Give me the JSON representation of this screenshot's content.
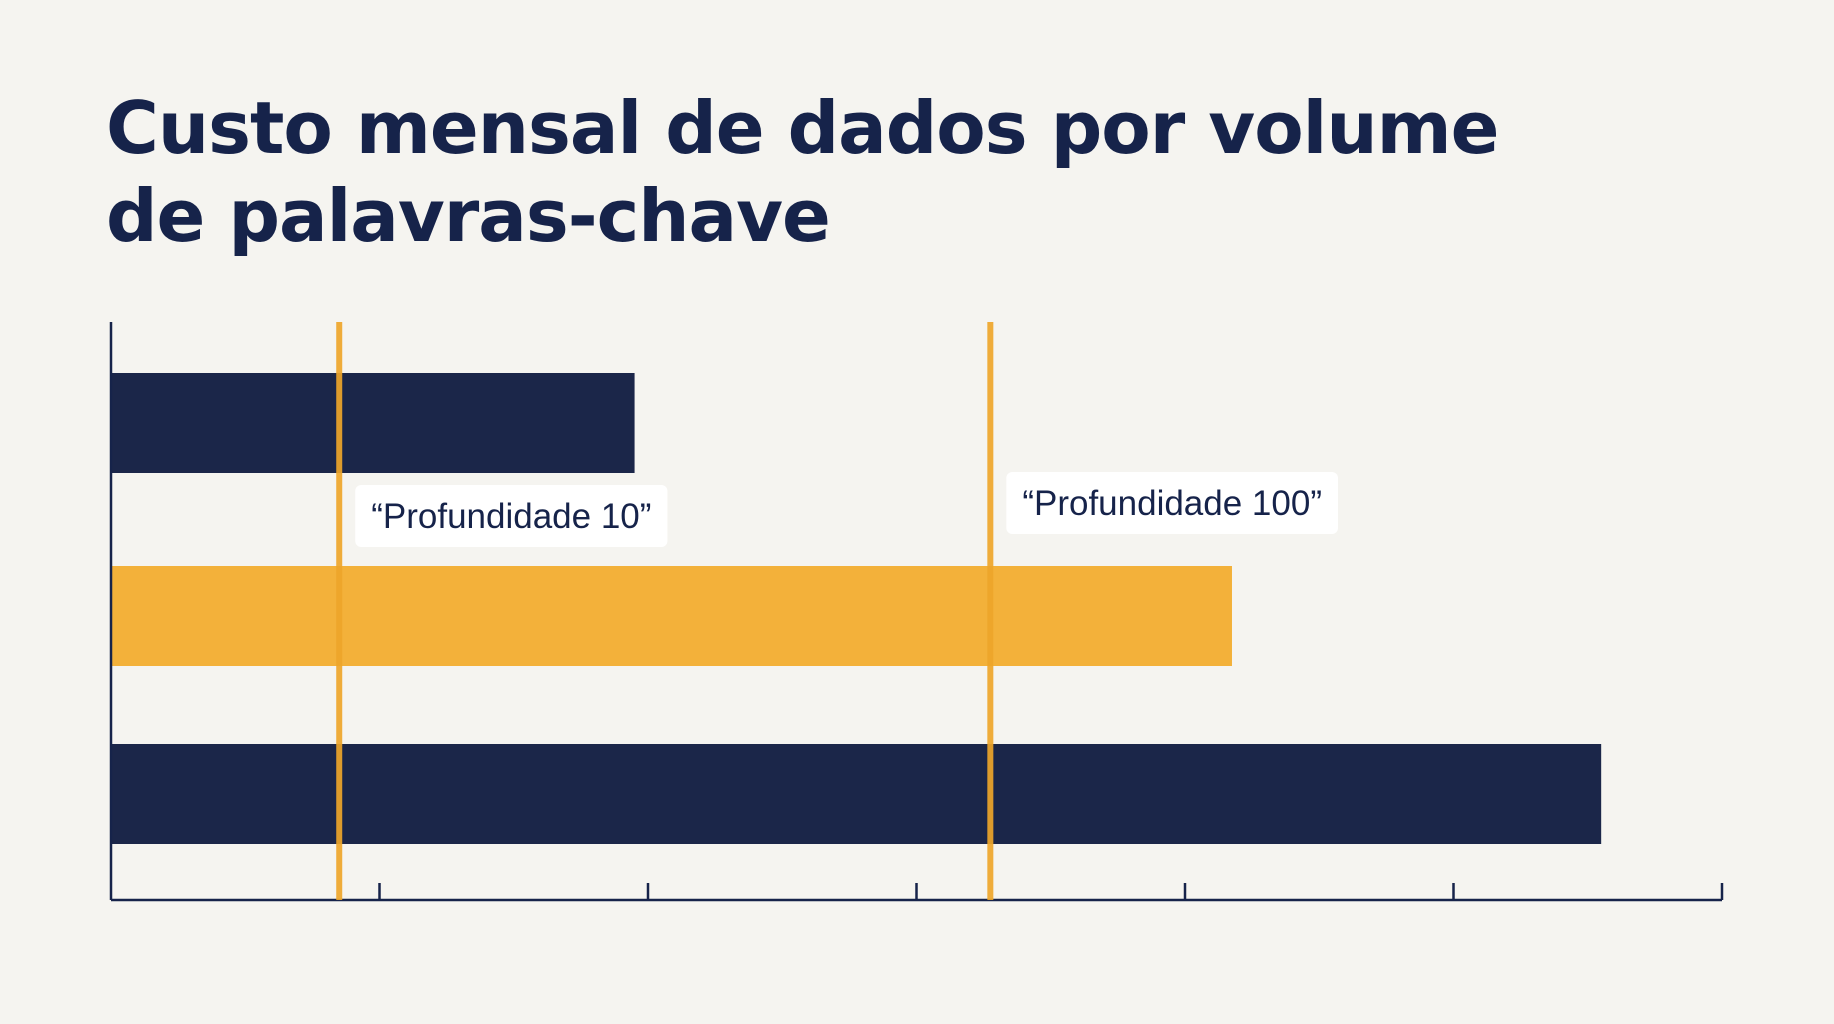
{
  "chart_data": {
    "type": "bar",
    "orientation": "horizontal",
    "title": "Custo mensal de dados por volume de palavras-chave",
    "xlabel": "",
    "ylabel": "",
    "categories": [
      "",
      "",
      ""
    ],
    "values": [
      3.9,
      8.35,
      11.1
    ],
    "xlim": [
      0,
      12
    ],
    "xticks": [
      2,
      4,
      6,
      8,
      10,
      12
    ],
    "grid": false,
    "legend": "none",
    "reference_lines": [
      {
        "label": "“Profundidade 10”",
        "x": 1.7
      },
      {
        "label": "“Profundidade 100”",
        "x": 6.55
      }
    ]
  },
  "colors": {
    "navy": "#1b2649",
    "gold": "#f3b13a",
    "ref_line": "#eea52a",
    "axis": "#16234a",
    "background": "#f5f4f0"
  },
  "bar_colors": [
    "#1b2649",
    "#f3b13a",
    "#1b2649"
  ]
}
